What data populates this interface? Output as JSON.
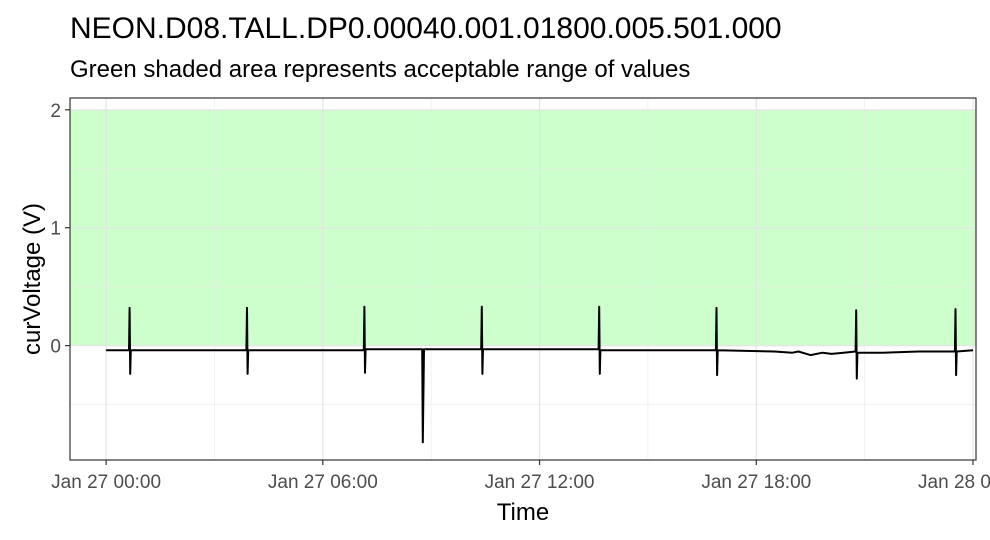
{
  "chart_data": {
    "type": "line",
    "title": "NEON.D08.TALL.DP0.00040.001.01800.005.501.000",
    "subtitle": "Green shaded area represents acceptable range of values",
    "xlabel": "Time",
    "ylabel": "curVoltage (V)",
    "xlim": [
      "2024-01-26T23:00",
      "2024-01-28T00:05"
    ],
    "ylim": [
      -0.97,
      2.1
    ],
    "x_ticks": [
      {
        "value": "2024-01-27T00:00",
        "label": "Jan 27 00:00"
      },
      {
        "value": "2024-01-27T06:00",
        "label": "Jan 27 06:00"
      },
      {
        "value": "2024-01-27T12:00",
        "label": "Jan 27 12:00"
      },
      {
        "value": "2024-01-27T18:00",
        "label": "Jan 27 18:00"
      },
      {
        "value": "2024-01-28T00:00",
        "label": "Jan 28 00:00"
      }
    ],
    "y_ticks": [
      0,
      1,
      2
    ],
    "grid": true,
    "acceptable_range": {
      "min": 0,
      "max": 2,
      "color": "#ccffcc"
    },
    "line_color": "#000000",
    "series": [
      {
        "values": [
          {
            "x": "2024-01-27T00:00",
            "y": -0.04
          },
          {
            "x": "2024-01-27T00:38",
            "y": -0.04
          },
          {
            "x": "2024-01-27T00:39",
            "y": 0.32
          },
          {
            "x": "2024-01-27T00:40",
            "y": -0.24
          },
          {
            "x": "2024-01-27T00:41",
            "y": -0.04
          },
          {
            "x": "2024-01-27T03:53",
            "y": -0.04
          },
          {
            "x": "2024-01-27T03:54",
            "y": 0.32
          },
          {
            "x": "2024-01-27T03:55",
            "y": -0.24
          },
          {
            "x": "2024-01-27T03:56",
            "y": -0.04
          },
          {
            "x": "2024-01-27T07:08",
            "y": -0.04
          },
          {
            "x": "2024-01-27T07:09",
            "y": 0.33
          },
          {
            "x": "2024-01-27T07:10",
            "y": -0.23
          },
          {
            "x": "2024-01-27T07:11",
            "y": -0.03
          },
          {
            "x": "2024-01-27T08:45",
            "y": -0.03
          },
          {
            "x": "2024-01-27T08:46",
            "y": -0.82
          },
          {
            "x": "2024-01-27T08:48",
            "y": -0.03
          },
          {
            "x": "2024-01-27T10:23",
            "y": -0.03
          },
          {
            "x": "2024-01-27T10:24",
            "y": 0.33
          },
          {
            "x": "2024-01-27T10:25",
            "y": -0.24
          },
          {
            "x": "2024-01-27T10:26",
            "y": -0.03
          },
          {
            "x": "2024-01-27T13:38",
            "y": -0.03
          },
          {
            "x": "2024-01-27T13:39",
            "y": 0.33
          },
          {
            "x": "2024-01-27T13:40",
            "y": -0.24
          },
          {
            "x": "2024-01-27T13:41",
            "y": -0.04
          },
          {
            "x": "2024-01-27T16:53",
            "y": -0.04
          },
          {
            "x": "2024-01-27T16:54",
            "y": 0.32
          },
          {
            "x": "2024-01-27T16:55",
            "y": -0.25
          },
          {
            "x": "2024-01-27T16:56",
            "y": -0.04
          },
          {
            "x": "2024-01-27T18:30",
            "y": -0.05
          },
          {
            "x": "2024-01-27T19:00",
            "y": -0.06
          },
          {
            "x": "2024-01-27T19:10",
            "y": -0.05
          },
          {
            "x": "2024-01-27T19:30",
            "y": -0.08
          },
          {
            "x": "2024-01-27T19:50",
            "y": -0.06
          },
          {
            "x": "2024-01-27T20:05",
            "y": -0.07
          },
          {
            "x": "2024-01-27T20:25",
            "y": -0.06
          },
          {
            "x": "2024-01-27T20:45",
            "y": -0.05
          },
          {
            "x": "2024-01-27T20:46",
            "y": 0.3
          },
          {
            "x": "2024-01-27T20:47",
            "y": -0.28
          },
          {
            "x": "2024-01-27T20:48",
            "y": -0.06
          },
          {
            "x": "2024-01-27T21:30",
            "y": -0.06
          },
          {
            "x": "2024-01-27T22:30",
            "y": -0.05
          },
          {
            "x": "2024-01-27T23:30",
            "y": -0.05
          },
          {
            "x": "2024-01-27T23:31",
            "y": 0.31
          },
          {
            "x": "2024-01-27T23:32",
            "y": -0.25
          },
          {
            "x": "2024-01-27T23:33",
            "y": -0.05
          },
          {
            "x": "2024-01-28T00:00",
            "y": -0.04
          }
        ]
      }
    ]
  }
}
